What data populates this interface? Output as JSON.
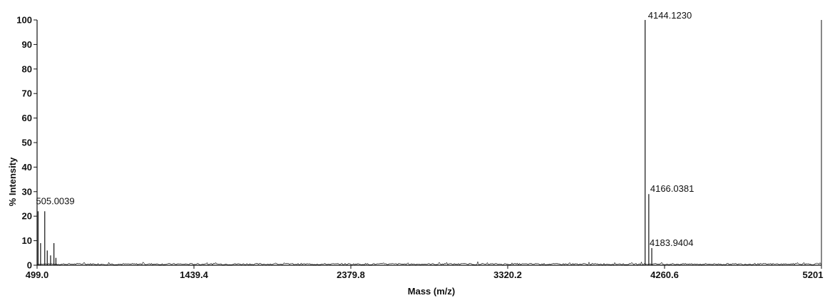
{
  "chart_data": {
    "type": "line",
    "title": "",
    "xlabel": "Mass (m/z)",
    "ylabel": "% Intensity",
    "xlim": [
      499.0,
      5201.0
    ],
    "ylim": [
      0,
      100
    ],
    "x_ticks": [
      499.0,
      1439.4,
      2379.8,
      3320.2,
      4260.6,
      5201.0
    ],
    "x_tick_labels": [
      "499.0",
      "1439.4",
      "2379.8",
      "3320.2",
      "4260.6",
      "5201"
    ],
    "y_ticks": [
      0,
      10,
      20,
      30,
      40,
      50,
      60,
      70,
      80,
      90,
      100
    ],
    "grid": false,
    "legend": "none",
    "series": [
      {
        "peaks": [
          {
            "x": 505.0,
            "y": 22
          },
          {
            "x": 520.0,
            "y": 9
          },
          {
            "x": 545.0,
            "y": 22
          },
          {
            "x": 560.0,
            "y": 6
          },
          {
            "x": 580.0,
            "y": 4
          },
          {
            "x": 600.0,
            "y": 9
          },
          {
            "x": 612.0,
            "y": 3
          },
          {
            "x": 4144.1,
            "y": 100
          },
          {
            "x": 4166.0,
            "y": 29
          },
          {
            "x": 4183.9,
            "y": 7
          }
        ]
      }
    ],
    "annotations": [
      {
        "text": "505.0039",
        "x": 505.0,
        "y": 22
      },
      {
        "text": "4144.1230",
        "x": 4144.1,
        "y": 100
      },
      {
        "text": "4166.0381",
        "x": 4166.0,
        "y": 29
      },
      {
        "text": "4183.9404",
        "x": 4183.9,
        "y": 7
      }
    ]
  }
}
